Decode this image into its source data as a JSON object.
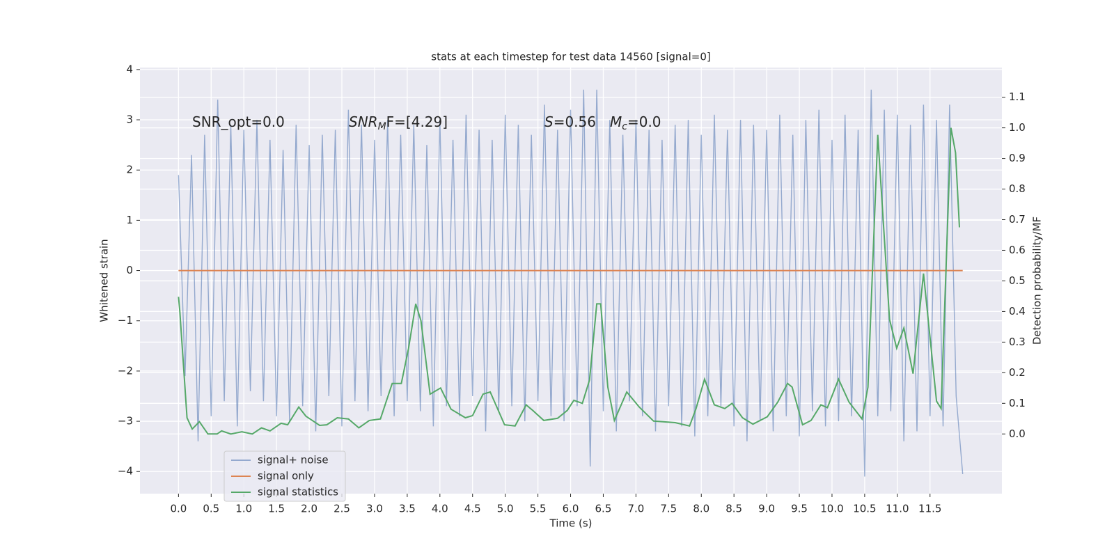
{
  "chart_data": {
    "type": "line",
    "title": "stats at each timestep for test data 14560 [signal=0]",
    "x_label": "Time (s)",
    "y_label": "Whitened strain",
    "y2_label": "Detection probability/MF",
    "xlim": [
      -0.59,
      12.6
    ],
    "ylim": [
      -4.44,
      4.04
    ],
    "y2lim": [
      -0.195,
      1.197
    ],
    "xticks": [
      {
        "value": 0,
        "label": "0.0"
      },
      0.5,
      {
        "value": 1,
        "label": "1.0"
      },
      1.5,
      {
        "value": 2,
        "label": "2.0"
      },
      2.5,
      {
        "value": 3,
        "label": "3.0"
      },
      3.5,
      {
        "value": 4,
        "label": "4.0"
      },
      4.5,
      {
        "value": 5,
        "label": "5.0"
      },
      5.5,
      {
        "value": 6,
        "label": "6.0"
      },
      6.5,
      {
        "value": 7,
        "label": "7.0"
      },
      7.5,
      {
        "value": 8,
        "label": "8.0"
      },
      8.5,
      {
        "value": 9,
        "label": "9.0"
      },
      9.5,
      {
        "value": 10,
        "label": "10.0"
      },
      10.5,
      {
        "value": 11,
        "label": "11.0"
      },
      11.5
    ],
    "yticks": [
      {
        "value": -4,
        "label": "−4"
      },
      {
        "value": -3,
        "label": "−3"
      },
      {
        "value": -2,
        "label": "−2"
      },
      {
        "value": -1,
        "label": "−1"
      },
      0,
      1,
      2,
      3,
      4
    ],
    "y2ticks": [
      {
        "value": 0,
        "label": "0.0"
      },
      0.1,
      0.2,
      0.3,
      0.4,
      0.5,
      0.6,
      0.7,
      0.8,
      0.9,
      {
        "value": 1,
        "label": "1.0"
      },
      1.1
    ],
    "grid": true,
    "legend": "lower left",
    "annotations": [
      {
        "main": "SNR_opt=0.0"
      },
      {
        "main": "SNR",
        "sub": "M",
        "rest": "F=[4.29]"
      },
      {
        "main": "S",
        "rest": "=0.56"
      },
      {
        "main": "M",
        "sub": "c",
        "rest": "=0.0"
      }
    ],
    "series": [
      {
        "name": "signal+ noise",
        "color": "#4c72b0",
        "x": [
          0,
          0.1,
          0.2,
          0.3,
          0.4,
          0.5,
          0.6,
          0.7,
          0.8,
          0.9,
          1,
          1.1,
          1.2,
          1.3,
          1.4,
          1.5,
          1.6,
          1.7,
          1.8,
          1.9,
          2,
          2.1,
          2.2,
          2.3,
          2.4,
          2.5,
          2.6,
          2.7,
          2.8,
          2.9,
          3,
          3.1,
          3.2,
          3.3,
          3.4,
          3.5,
          3.6,
          3.7,
          3.8,
          3.9,
          4,
          4.1,
          4.2,
          4.3,
          4.4,
          4.5,
          4.6,
          4.7,
          4.8,
          4.9,
          5,
          5.1,
          5.2,
          5.3,
          5.4,
          5.5,
          5.6,
          5.7,
          5.8,
          5.9,
          6,
          6.1,
          6.2,
          6.3,
          6.4,
          6.5,
          6.6,
          6.7,
          6.8,
          6.9,
          7,
          7.1,
          7.2,
          7.3,
          7.4,
          7.5,
          7.6,
          7.7,
          7.8,
          7.9,
          8,
          8.1,
          8.2,
          8.3,
          8.4,
          8.5,
          8.6,
          8.7,
          8.8,
          8.9,
          9,
          9.1,
          9.2,
          9.3,
          9.4,
          9.5,
          9.6,
          9.7,
          9.8,
          9.9,
          10,
          10.1,
          10.2,
          10.3,
          10.4,
          10.5,
          10.6,
          10.7,
          10.8,
          10.9,
          11,
          11.1,
          11.2,
          11.3,
          11.4,
          11.5,
          11.6,
          11.7,
          11.8,
          11.9,
          12
        ],
        "values": [
          1.9,
          -2.1,
          2.3,
          -3.4,
          2.7,
          -2.9,
          3.4,
          -2.6,
          2.9,
          -3.1,
          2.8,
          -2.4,
          3.0,
          -2.6,
          2.6,
          -2.9,
          2.4,
          -3.0,
          2.9,
          -2.7,
          2.5,
          -3.2,
          2.7,
          -2.5,
          2.8,
          -3.1,
          3.2,
          -2.6,
          2.9,
          -2.8,
          2.6,
          -2.5,
          3.0,
          -2.9,
          2.7,
          -2.6,
          2.9,
          -2.8,
          2.5,
          -3.1,
          3.0,
          -2.7,
          2.6,
          -2.9,
          3.1,
          -2.5,
          2.8,
          -3.2,
          2.6,
          -2.8,
          3.1,
          -2.7,
          2.9,
          -3.0,
          2.7,
          -2.6,
          3.3,
          -2.9,
          2.8,
          -3.0,
          3.2,
          -2.7,
          3.6,
          -3.9,
          3.6,
          -2.8,
          3.0,
          -3.2,
          2.7,
          -2.6,
          3.0,
          -2.9,
          2.8,
          -3.2,
          2.6,
          -2.7,
          2.9,
          -3.1,
          3.0,
          -3.3,
          2.7,
          -2.9,
          3.1,
          -2.7,
          2.8,
          -3.1,
          3.0,
          -3.4,
          2.9,
          -3.0,
          2.8,
          -3.2,
          3.1,
          -2.9,
          2.7,
          -3.3,
          3.0,
          -2.8,
          3.2,
          -3.1,
          2.6,
          -3.0,
          3.1,
          -2.9,
          2.8,
          -4.1,
          3.6,
          -2.9,
          3.2,
          -2.8,
          3.1,
          -3.4,
          2.9,
          -3.2,
          3.3,
          -2.9,
          3.0,
          -3.1,
          3.3,
          -2.5,
          -4.05
        ]
      },
      {
        "name": "signal only",
        "color": "#dd8452",
        "x": [
          0,
          12
        ],
        "values": [
          0,
          0
        ]
      },
      {
        "name": "signal statistics",
        "color": "#55a868",
        "axis": "y2",
        "x": [
          0,
          0.02,
          0.13,
          0.21,
          0.32,
          0.45,
          0.59,
          0.66,
          0.8,
          0.97,
          1.13,
          1.27,
          1.4,
          1.57,
          1.67,
          1.84,
          1.95,
          2.16,
          2.27,
          2.43,
          2.6,
          2.76,
          2.92,
          3.09,
          3.27,
          3.41,
          3.52,
          3.63,
          3.71,
          3.85,
          4.01,
          4.17,
          4.39,
          4.5,
          4.66,
          4.77,
          4.99,
          5.15,
          5.32,
          5.42,
          5.59,
          5.8,
          5.95,
          6.05,
          6.18,
          6.29,
          6.4,
          6.46,
          6.57,
          6.67,
          6.86,
          7.05,
          7.27,
          7.6,
          7.82,
          7.92,
          8.05,
          8.2,
          8.36,
          8.47,
          8.63,
          8.79,
          9.01,
          9.17,
          9.32,
          9.39,
          9.55,
          9.68,
          9.83,
          9.93,
          10.1,
          10.26,
          10.46,
          10.55,
          10.7,
          10.88,
          10.99,
          11.1,
          11.24,
          11.4,
          11.6,
          11.67,
          11.82,
          11.89,
          11.95
        ],
        "values": [
          0.448,
          0.4,
          0.053,
          0.016,
          0.04,
          0.0,
          0.0,
          0.01,
          0.0,
          0.007,
          0.0,
          0.02,
          0.01,
          0.035,
          0.03,
          0.088,
          0.058,
          0.028,
          0.03,
          0.053,
          0.049,
          0.02,
          0.044,
          0.049,
          0.165,
          0.165,
          0.28,
          0.425,
          0.37,
          0.13,
          0.15,
          0.081,
          0.053,
          0.06,
          0.13,
          0.137,
          0.03,
          0.026,
          0.095,
          0.077,
          0.044,
          0.051,
          0.077,
          0.11,
          0.1,
          0.176,
          0.425,
          0.425,
          0.153,
          0.044,
          0.137,
          0.088,
          0.042,
          0.037,
          0.026,
          0.083,
          0.179,
          0.095,
          0.083,
          0.1,
          0.053,
          0.032,
          0.056,
          0.104,
          0.165,
          0.153,
          0.03,
          0.044,
          0.095,
          0.086,
          0.179,
          0.104,
          0.049,
          0.153,
          0.977,
          0.374,
          0.28,
          0.346,
          0.197,
          0.524,
          0.107,
          0.083,
          1.0,
          0.919,
          0.675
        ]
      }
    ]
  }
}
